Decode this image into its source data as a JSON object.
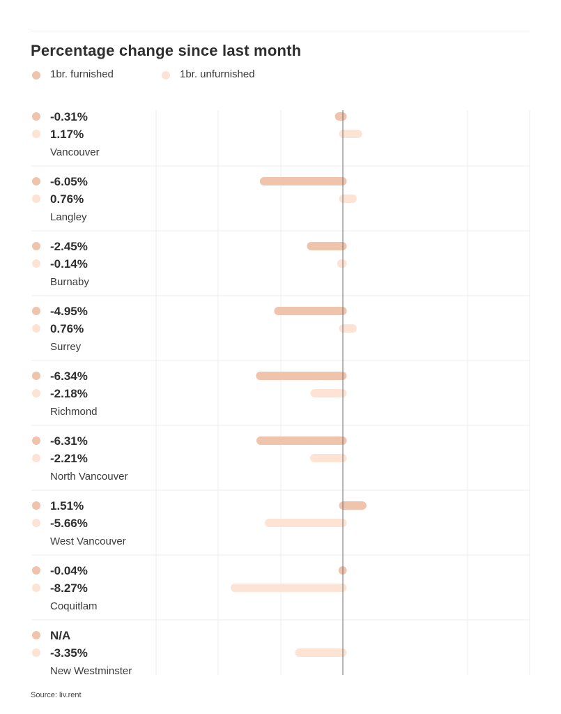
{
  "chart_data": {
    "type": "bar",
    "orientation": "horizontal",
    "title": "Percentage change since last month",
    "legend_position": "top-left",
    "grid": true,
    "unit": "%",
    "xlim": [
      -10,
      4
    ],
    "series": [
      {
        "name": "1br. furnished",
        "color": "#EFC3AC"
      },
      {
        "name": "1br. unfurnished",
        "color": "#FCE3D4"
      }
    ],
    "rows": [
      {
        "city": "Vancouver",
        "furnished": -0.31,
        "unfurnished": 1.17,
        "furnished_label": "-0.31%",
        "unfurnished_label": "1.17%"
      },
      {
        "city": "Langley",
        "furnished": -6.05,
        "unfurnished": 0.76,
        "furnished_label": "-6.05%",
        "unfurnished_label": "0.76%"
      },
      {
        "city": "Burnaby",
        "furnished": -2.45,
        "unfurnished": -0.14,
        "furnished_label": "-2.45%",
        "unfurnished_label": "-0.14%"
      },
      {
        "city": "Surrey",
        "furnished": -4.95,
        "unfurnished": 0.76,
        "furnished_label": "-4.95%",
        "unfurnished_label": "0.76%"
      },
      {
        "city": "Richmond",
        "furnished": -6.34,
        "unfurnished": -2.18,
        "furnished_label": "-6.34%",
        "unfurnished_label": "-2.18%"
      },
      {
        "city": "North Vancouver",
        "furnished": -6.31,
        "unfurnished": -2.21,
        "furnished_label": "-6.31%",
        "unfurnished_label": "-2.21%"
      },
      {
        "city": "West Vancouver",
        "furnished": 1.51,
        "unfurnished": -5.66,
        "furnished_label": "1.51%",
        "unfurnished_label": "-5.66%"
      },
      {
        "city": "Coquitlam",
        "furnished": -0.04,
        "unfurnished": -8.27,
        "furnished_label": "-0.04%",
        "unfurnished_label": "-8.27%"
      },
      {
        "city": "New Westminster",
        "furnished": null,
        "unfurnished": -3.35,
        "furnished_label": "N/A",
        "unfurnished_label": "-3.35%"
      }
    ]
  },
  "source": "Source: liv.rent"
}
